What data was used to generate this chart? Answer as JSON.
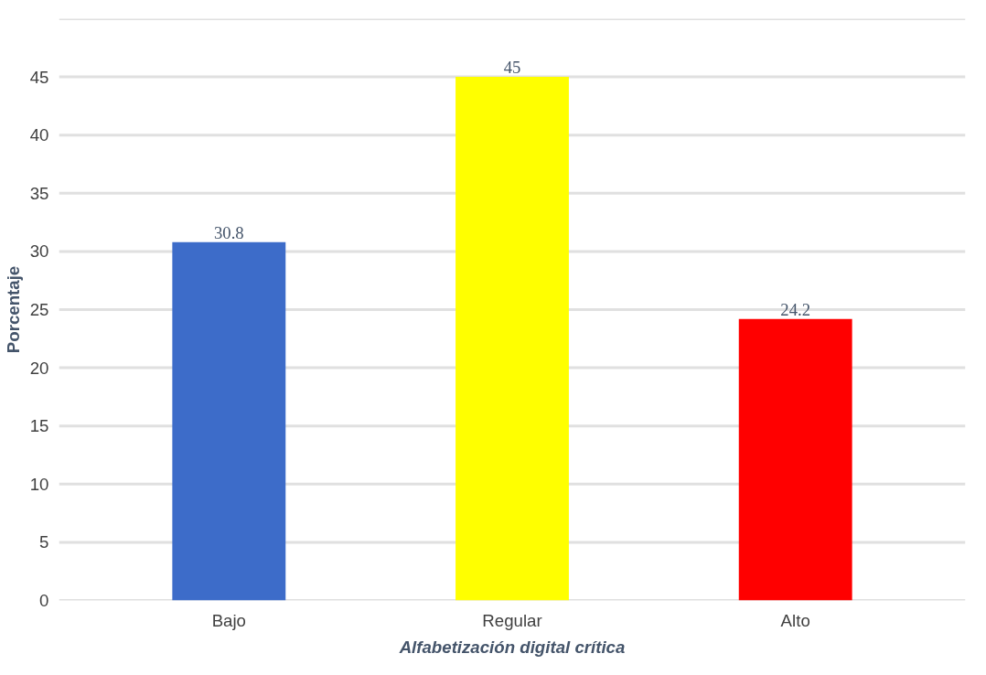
{
  "chart_data": {
    "type": "bar",
    "xlabel": "Alfabetización digital crítica",
    "ylabel": "Porcentaje",
    "categories": [
      "Bajo",
      "Regular",
      "Alto"
    ],
    "values": [
      30.8,
      45,
      24.2
    ],
    "colors": [
      "#3d6cc9",
      "#ffff00",
      "#ff0000"
    ],
    "ylim": [
      0,
      50
    ],
    "yticks": [
      0,
      5,
      10,
      15,
      20,
      25,
      30,
      35,
      40,
      45,
      {
        "value": 50,
        "label": null
      }
    ],
    "grid": "y",
    "data_labels": true
  }
}
